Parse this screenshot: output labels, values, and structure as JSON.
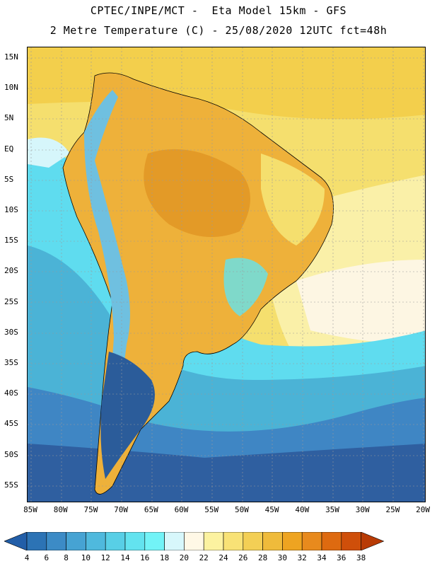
{
  "header": {
    "line1": "CPTEC/INPE/MCT -  Eta Model 15km - GFS",
    "line2": "2 Metre Temperature (C) - 25/08/2020 12UTC fct=48h"
  },
  "map": {
    "lat_ticks": [
      "15N",
      "10N",
      "5N",
      "EQ",
      "5S",
      "10S",
      "15S",
      "20S",
      "25S",
      "30S",
      "35S",
      "40S",
      "45S",
      "50S",
      "55S"
    ],
    "lon_ticks": [
      "85W",
      "80W",
      "75W",
      "70W",
      "65W",
      "60W",
      "55W",
      "50W",
      "45W",
      "40W",
      "35W",
      "30W",
      "25W",
      "20W"
    ],
    "colors": {
      "ocean_far_south": "#2f5fa0",
      "ocean_south": "#3f86c4",
      "ocean_mid": "#4bb3d6",
      "ocean_cyan": "#5fdcef",
      "ocean_pale": "#d6f6fb",
      "ocean_cream": "#fdf6e3",
      "ocean_light_yellow": "#faf0a8",
      "ocean_yellow": "#f5df6e",
      "warm_yellow": "#f3cf4c",
      "land_orange": "#eeb13a",
      "land_deep_orange": "#e39a27",
      "andes": "#6fc0e0",
      "patagonia": "#2b5c9a"
    }
  },
  "colorbar": {
    "labels": [
      "4",
      "6",
      "8",
      "10",
      "12",
      "14",
      "16",
      "18",
      "20",
      "22",
      "24",
      "26",
      "28",
      "30",
      "32",
      "34",
      "36",
      "38"
    ],
    "colors": [
      "#225ea8",
      "#2c73b5",
      "#3c8bc6",
      "#46a3d3",
      "#4fb9dd",
      "#58cfe6",
      "#63e3ef",
      "#72f3f7",
      "#d7f7fb",
      "#fff8e6",
      "#fcf2a0",
      "#f8e276",
      "#f3cf55",
      "#efbb3b",
      "#eea421",
      "#e88a1d",
      "#de6a10",
      "#cf4f0a",
      "#b83b05"
    ]
  }
}
